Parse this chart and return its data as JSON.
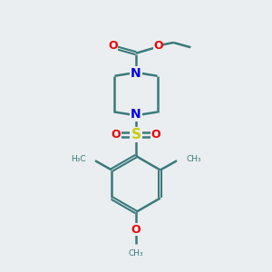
{
  "background_color": "#eaeef0",
  "bond_color": "#3a7a7a",
  "bond_width": 1.8,
  "N_color": "#0000ee",
  "O_color": "#ee0000",
  "S_color": "#cccc00",
  "figsize": [
    3.0,
    3.0
  ],
  "dpi": 100,
  "xlim": [
    0,
    10
  ],
  "ylim": [
    0,
    10
  ]
}
